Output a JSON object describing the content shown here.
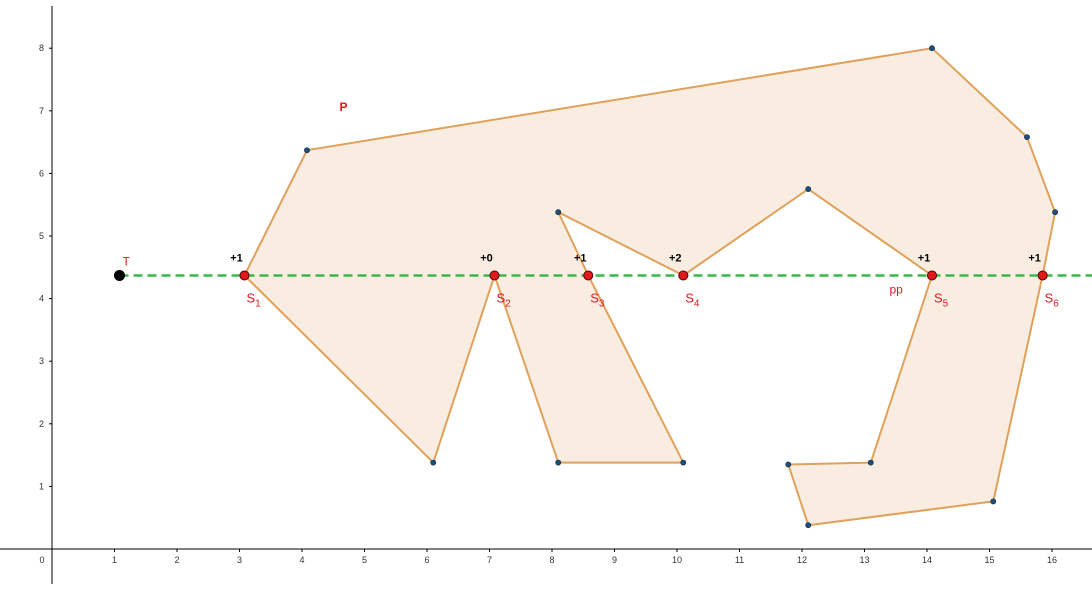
{
  "colors": {
    "polygon_fill": "#f9ede2",
    "polygon_stroke": "#e0a15a",
    "vertex": "#1f4e79",
    "ray": "#3cb84a",
    "intersection": "#e0191d",
    "axis": "#000000",
    "point_T": "#000000"
  },
  "polygon": {
    "label": "P",
    "vertices": [
      [
        3.08,
        4.37
      ],
      [
        4.08,
        6.37
      ],
      [
        14.08,
        8.0
      ],
      [
        15.6,
        6.58
      ],
      [
        16.05,
        5.38
      ],
      [
        15.85,
        4.37
      ],
      [
        15.06,
        0.76
      ],
      [
        12.1,
        0.38
      ],
      [
        11.78,
        1.35
      ],
      [
        13.1,
        1.38
      ],
      [
        14.08,
        4.37
      ],
      [
        12.1,
        5.75
      ],
      [
        10.1,
        4.37
      ],
      [
        8.1,
        5.38
      ],
      [
        8.58,
        4.37
      ],
      [
        10.1,
        1.38
      ],
      [
        8.1,
        1.38
      ],
      [
        7.08,
        4.37
      ],
      [
        6.1,
        1.38
      ]
    ]
  },
  "ray": {
    "label": "pp",
    "y": 4.37,
    "x_start": 1.08
  },
  "point_T": {
    "label": "T",
    "x": 1.08,
    "y": 4.37
  },
  "intersections": [
    {
      "name": "S",
      "sub": "1",
      "x": 3.08,
      "count": "+1"
    },
    {
      "name": "S",
      "sub": "2",
      "x": 7.08,
      "count": "+0"
    },
    {
      "name": "S",
      "sub": "3",
      "x": 8.58,
      "count": "+1"
    },
    {
      "name": "S",
      "sub": "4",
      "x": 10.1,
      "count": "+2"
    },
    {
      "name": "S",
      "sub": "5",
      "x": 14.08,
      "count": "+1"
    },
    {
      "name": "S",
      "sub": "6",
      "x": 15.85,
      "count": "+1"
    }
  ],
  "axes": {
    "x_ticks": [
      "0",
      "1",
      "2",
      "3",
      "4",
      "5",
      "6",
      "7",
      "8",
      "9",
      "10",
      "11",
      "12",
      "13",
      "14",
      "15",
      "16"
    ],
    "y_ticks": [
      "1",
      "2",
      "3",
      "4",
      "5",
      "6",
      "7",
      "8"
    ],
    "x_range": [
      -0.7,
      16.7
    ],
    "y_range": [
      -0.4,
      8.7
    ]
  }
}
